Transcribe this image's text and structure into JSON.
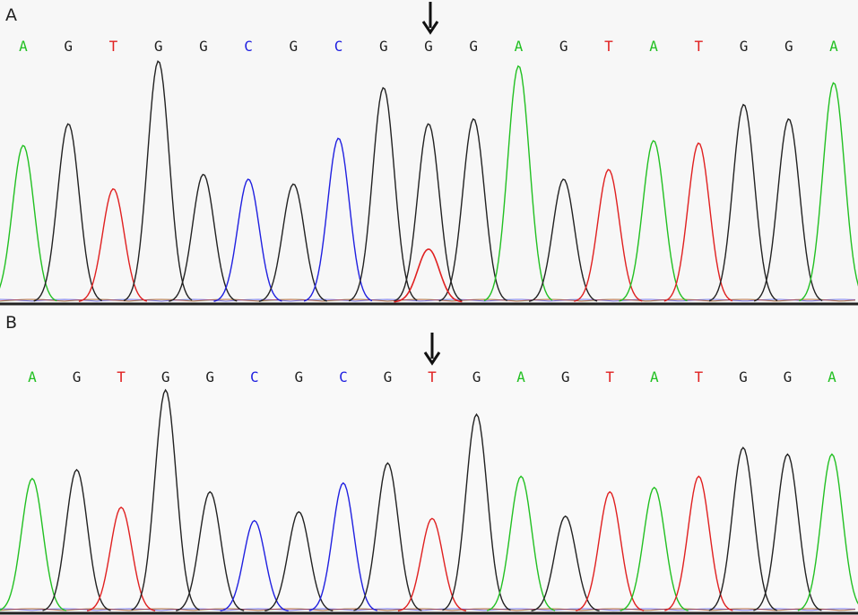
{
  "colors": {
    "A": "#22c022",
    "G": "#222222",
    "T": "#e02020",
    "C": "#2020e0",
    "arrow": "#111111"
  },
  "panels": [
    {
      "label": "A",
      "bases": [
        "A",
        "G",
        "T",
        "G",
        "G",
        "C",
        "G",
        "C",
        "G",
        "G",
        "G",
        "A",
        "G",
        "T",
        "A",
        "T",
        "G",
        "G",
        "A"
      ],
      "peaks": [
        0.65,
        0.74,
        0.47,
        1.0,
        0.53,
        0.51,
        0.49,
        0.68,
        0.89,
        0.74,
        0.76,
        0.98,
        0.51,
        0.55,
        0.67,
        0.66,
        0.82,
        0.76,
        0.91
      ],
      "secondary_peak": {
        "index": 9,
        "base": "T",
        "level": 0.22
      },
      "mutation_index": 9
    },
    {
      "label": "B",
      "bases": [
        "A",
        "G",
        "T",
        "G",
        "G",
        "C",
        "G",
        "C",
        "G",
        "T",
        "G",
        "A",
        "G",
        "T",
        "A",
        "T",
        "G",
        "G",
        "A"
      ],
      "peaks": [
        0.6,
        0.64,
        0.47,
        1.0,
        0.54,
        0.41,
        0.45,
        0.58,
        0.67,
        0.42,
        0.89,
        0.61,
        0.43,
        0.54,
        0.56,
        0.61,
        0.74,
        0.71,
        0.71
      ],
      "secondary_peak": null,
      "mutation_index": 9
    }
  ]
}
